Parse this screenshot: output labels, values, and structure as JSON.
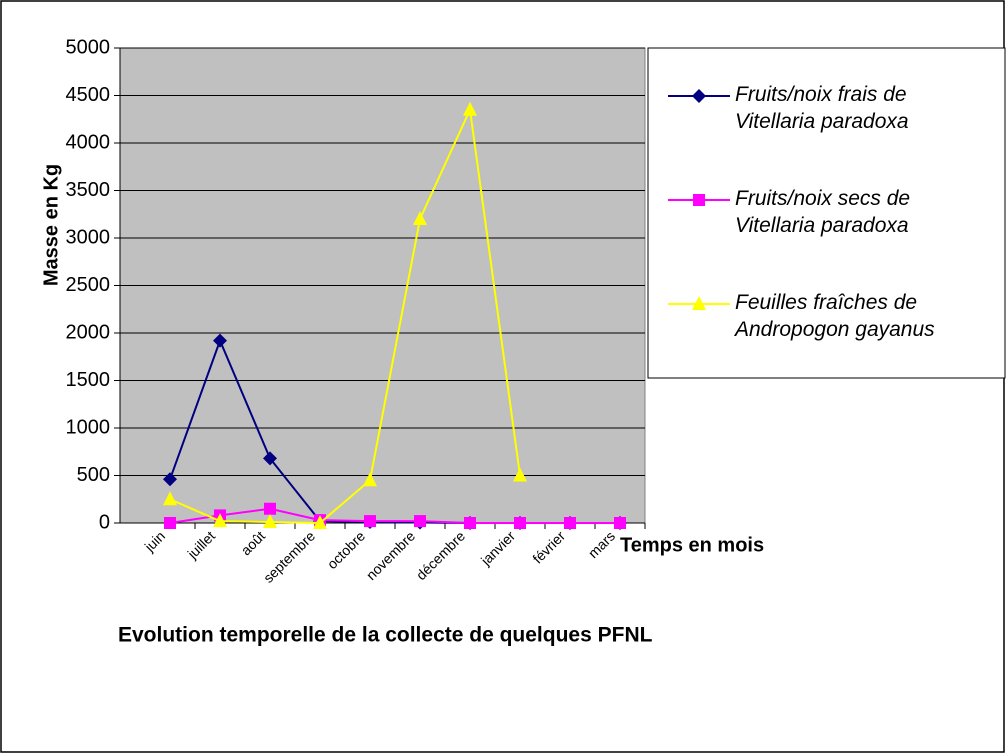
{
  "chart_data": {
    "type": "line",
    "title": "Evolution temporelle de la collecte de quelques PFNL",
    "x_label": "Temps en mois",
    "y_label": "Masse en Kg",
    "categories": [
      "juin",
      "juillet",
      "août",
      "septembre",
      "octobre",
      "novembre",
      "décembre",
      "janvier",
      "février",
      "mars"
    ],
    "series": [
      {
        "name": "Fruits/noix frais de Vitellaria paradoxa",
        "color": "#000080",
        "marker": "diamond",
        "values": [
          460,
          1920,
          680,
          20,
          10,
          5,
          0,
          0,
          0,
          0
        ]
      },
      {
        "name": "Fruits/noix secs de Vitellaria paradoxa",
        "color": "#ff00ff",
        "marker": "square",
        "values": [
          0,
          80,
          150,
          30,
          20,
          20,
          0,
          0,
          0,
          0
        ]
      },
      {
        "name": "Feuilles fraîches de Andropogon gayanus",
        "color": "#ffff00",
        "marker": "triangle",
        "values": [
          250,
          20,
          10,
          0,
          450,
          3200,
          4350,
          500,
          null,
          null
        ]
      }
    ],
    "ylim": [
      0,
      5000
    ],
    "yticks": [
      0,
      500,
      1000,
      1500,
      2000,
      2500,
      3000,
      3500,
      4000,
      4500,
      5000
    ],
    "grid": true,
    "legend": "right"
  }
}
